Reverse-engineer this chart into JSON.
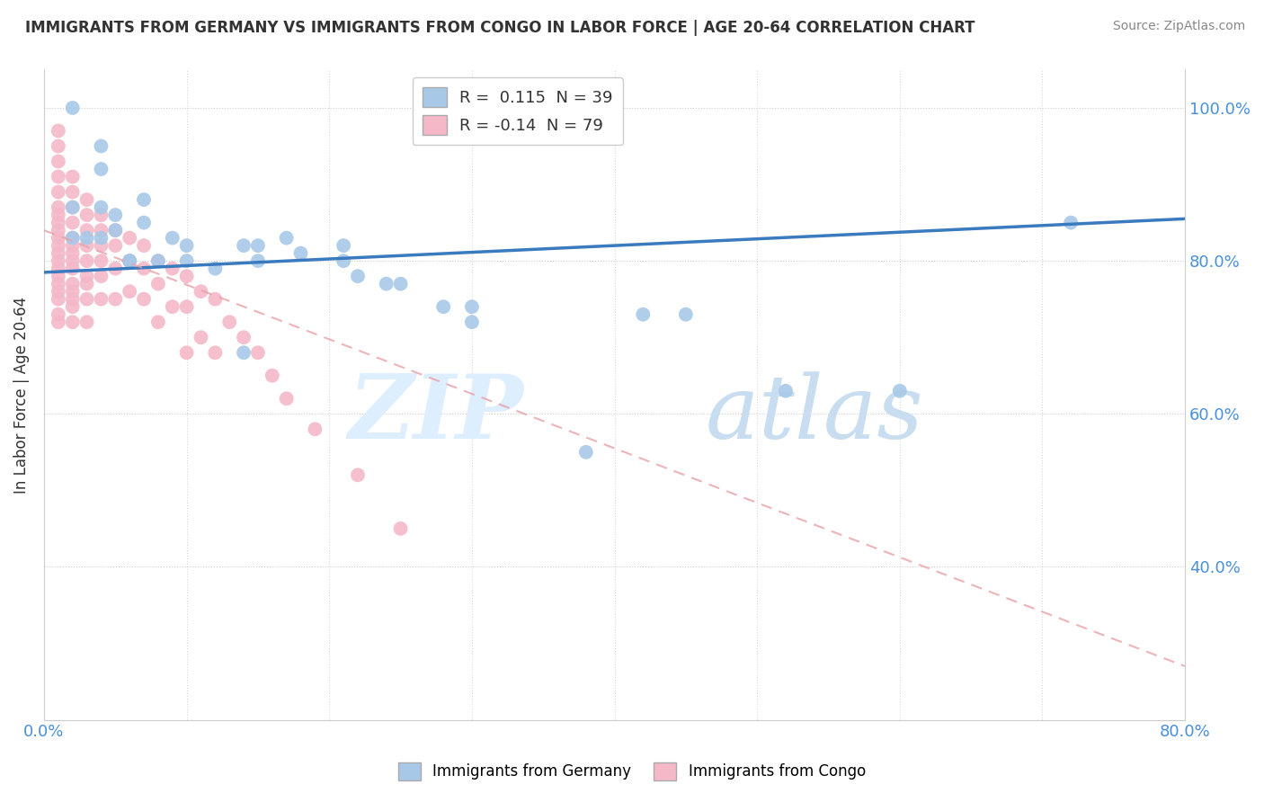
{
  "title": "IMMIGRANTS FROM GERMANY VS IMMIGRANTS FROM CONGO IN LABOR FORCE | AGE 20-64 CORRELATION CHART",
  "source": "Source: ZipAtlas.com",
  "ylabel": "In Labor Force | Age 20-64",
  "xlim": [
    0.0,
    0.8
  ],
  "ylim": [
    0.2,
    1.05
  ],
  "germany_R": 0.115,
  "germany_N": 39,
  "congo_R": -0.14,
  "congo_N": 79,
  "germany_color": "#a8c8e8",
  "congo_color": "#f4b8c8",
  "germany_line_color": "#3a7abf",
  "congo_line_color": "#e8a0a8",
  "germany_x": [
    0.02,
    0.04,
    0.04,
    0.07,
    0.02,
    0.05,
    0.05,
    0.07,
    0.09,
    0.1,
    0.14,
    0.15,
    0.15,
    0.17,
    0.18,
    0.21,
    0.21,
    0.22,
    0.24,
    0.25,
    0.28,
    0.3,
    0.3,
    0.1,
    0.12,
    0.08,
    0.06,
    0.04,
    0.03,
    0.42,
    0.45,
    0.52,
    0.6,
    0.72,
    0.14,
    0.04,
    0.06,
    0.38,
    0.02
  ],
  "germany_y": [
    1.0,
    0.95,
    0.92,
    0.88,
    0.87,
    0.86,
    0.84,
    0.85,
    0.83,
    0.82,
    0.82,
    0.82,
    0.8,
    0.83,
    0.81,
    0.82,
    0.8,
    0.78,
    0.77,
    0.77,
    0.74,
    0.74,
    0.72,
    0.8,
    0.79,
    0.8,
    0.8,
    0.83,
    0.83,
    0.73,
    0.73,
    0.63,
    0.63,
    0.85,
    0.68,
    0.87,
    0.8,
    0.55,
    0.83
  ],
  "congo_x": [
    0.01,
    0.01,
    0.01,
    0.01,
    0.01,
    0.01,
    0.01,
    0.01,
    0.01,
    0.01,
    0.01,
    0.01,
    0.01,
    0.01,
    0.01,
    0.01,
    0.01,
    0.01,
    0.01,
    0.01,
    0.02,
    0.02,
    0.02,
    0.02,
    0.02,
    0.02,
    0.02,
    0.02,
    0.02,
    0.02,
    0.02,
    0.02,
    0.02,
    0.02,
    0.03,
    0.03,
    0.03,
    0.03,
    0.03,
    0.03,
    0.03,
    0.03,
    0.03,
    0.04,
    0.04,
    0.04,
    0.04,
    0.04,
    0.04,
    0.05,
    0.05,
    0.05,
    0.05,
    0.06,
    0.06,
    0.06,
    0.07,
    0.07,
    0.07,
    0.08,
    0.08,
    0.08,
    0.09,
    0.09,
    0.1,
    0.1,
    0.1,
    0.11,
    0.11,
    0.12,
    0.12,
    0.13,
    0.14,
    0.15,
    0.16,
    0.17,
    0.19,
    0.22,
    0.25
  ],
  "congo_y": [
    0.97,
    0.95,
    0.93,
    0.91,
    0.89,
    0.87,
    0.86,
    0.85,
    0.84,
    0.83,
    0.82,
    0.81,
    0.8,
    0.79,
    0.78,
    0.77,
    0.76,
    0.75,
    0.73,
    0.72,
    0.91,
    0.89,
    0.87,
    0.85,
    0.83,
    0.82,
    0.81,
    0.8,
    0.79,
    0.77,
    0.76,
    0.75,
    0.74,
    0.72,
    0.88,
    0.86,
    0.84,
    0.82,
    0.8,
    0.78,
    0.77,
    0.75,
    0.72,
    0.86,
    0.84,
    0.82,
    0.8,
    0.78,
    0.75,
    0.84,
    0.82,
    0.79,
    0.75,
    0.83,
    0.8,
    0.76,
    0.82,
    0.79,
    0.75,
    0.8,
    0.77,
    0.72,
    0.79,
    0.74,
    0.78,
    0.74,
    0.68,
    0.76,
    0.7,
    0.75,
    0.68,
    0.72,
    0.7,
    0.68,
    0.65,
    0.62,
    0.58,
    0.52,
    0.45
  ]
}
